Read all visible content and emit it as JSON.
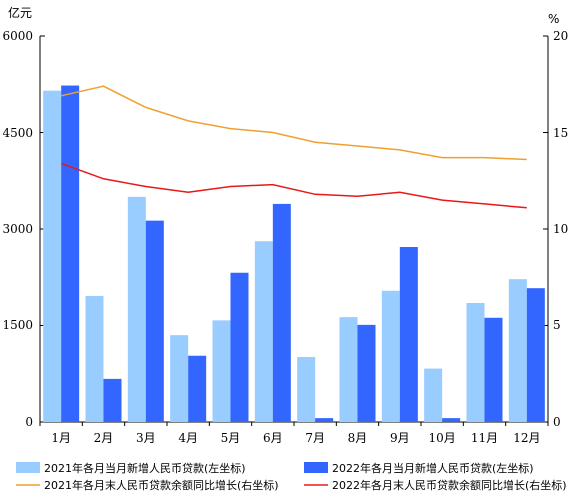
{
  "chart_data": {
    "type": "bar",
    "categories": [
      "1月",
      "2月",
      "3月",
      "4月",
      "5月",
      "6月",
      "7月",
      "8月",
      "9月",
      "10月",
      "11月",
      "12月"
    ],
    "left_axis": {
      "unit": "亿元",
      "ylim": [
        0,
        6000
      ],
      "ticks": [
        "0",
        "1500",
        "3000",
        "4500",
        "6000"
      ]
    },
    "right_axis": {
      "unit": "%",
      "ylim": [
        0,
        20
      ],
      "ticks": [
        "0",
        "5",
        "10",
        "15",
        "20"
      ]
    },
    "series": [
      {
        "name": "2021年各月当月新增人民币贷款(左坐标)",
        "kind": "bar",
        "axis": "left",
        "color": "#99ccff",
        "values": [
          5150,
          1960,
          3500,
          1350,
          1580,
          2810,
          1010,
          1630,
          2040,
          830,
          1850,
          2220
        ]
      },
      {
        "name": "2022年各月当月新增人民币贷款(左坐标)",
        "kind": "bar",
        "axis": "left",
        "color": "#3366ff",
        "values": [
          5230,
          670,
          3130,
          1030,
          2320,
          3390,
          60,
          1510,
          2720,
          60,
          1620,
          2080
        ]
      },
      {
        "name": "2021年各月末人民币贷款余额同比增长(右坐标)",
        "kind": "line",
        "axis": "right",
        "color": "#f0a030",
        "values": [
          16.9,
          17.4,
          16.3,
          15.6,
          15.2,
          15.0,
          14.5,
          14.3,
          14.1,
          13.7,
          13.7,
          13.6
        ]
      },
      {
        "name": "2022年各月末人民币贷款余额同比增长(右坐标)",
        "kind": "line",
        "axis": "right",
        "color": "#e81818",
        "values": [
          13.4,
          12.6,
          12.2,
          11.9,
          12.2,
          12.3,
          11.8,
          11.7,
          11.9,
          11.5,
          11.3,
          11.1
        ]
      }
    ],
    "grid": false,
    "legend_position": "bottom"
  }
}
